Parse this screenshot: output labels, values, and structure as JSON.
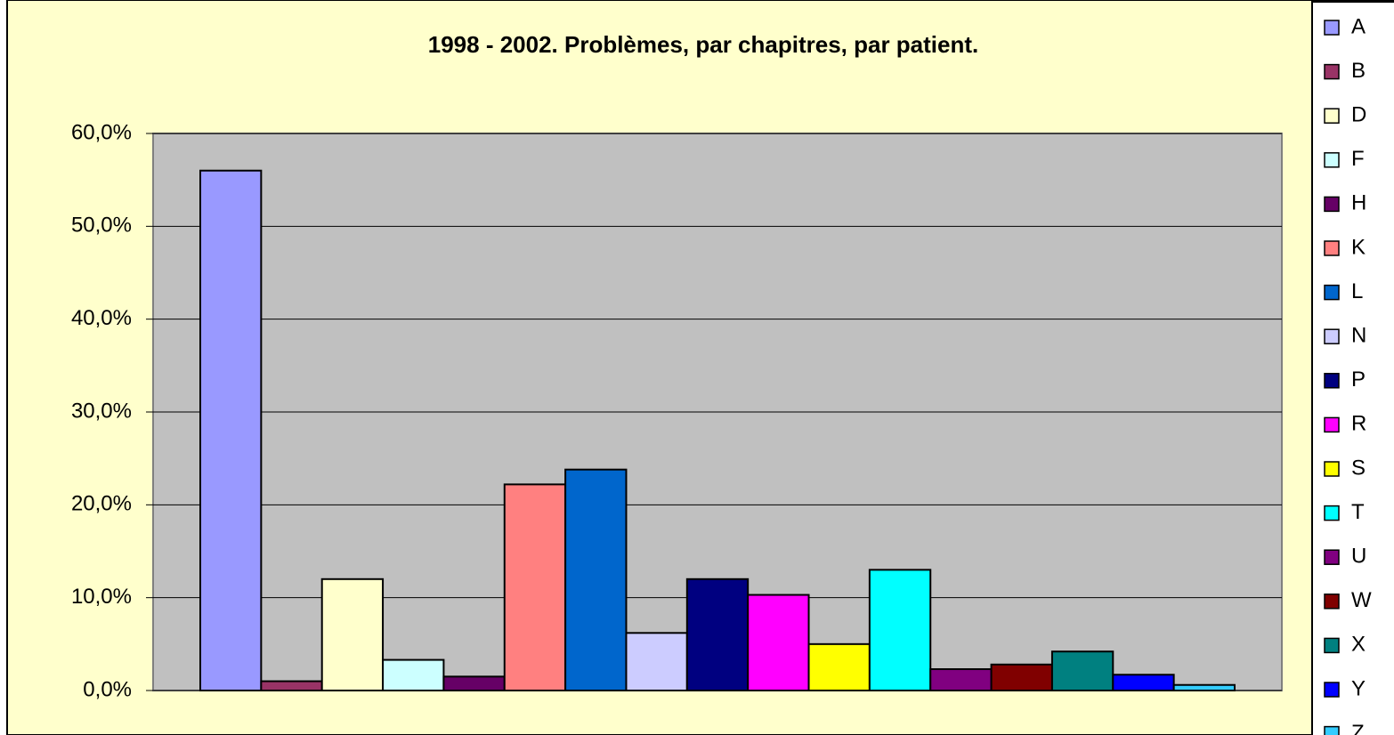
{
  "chart_data": {
    "type": "bar",
    "title": "1998 - 2002. Problèmes, par chapitres, par patient.",
    "categories": [
      null
    ],
    "series": [
      {
        "name": "A",
        "color": "#9999FF",
        "values": [
          56.0
        ]
      },
      {
        "name": "B",
        "color": "#993366",
        "values": [
          1.0
        ]
      },
      {
        "name": "D",
        "color": "#FFFFCC",
        "values": [
          12.0
        ]
      },
      {
        "name": "F",
        "color": "#CCFFFF",
        "values": [
          3.3
        ]
      },
      {
        "name": "H",
        "color": "#660066",
        "values": [
          1.5
        ]
      },
      {
        "name": "K",
        "color": "#FF8080",
        "values": [
          22.2
        ]
      },
      {
        "name": "L",
        "color": "#0066CC",
        "values": [
          23.8
        ]
      },
      {
        "name": "N",
        "color": "#CCCCFF",
        "values": [
          6.2
        ]
      },
      {
        "name": "P",
        "color": "#000080",
        "values": [
          12.0
        ]
      },
      {
        "name": "R",
        "color": "#FF00FF",
        "values": [
          10.3
        ]
      },
      {
        "name": "S",
        "color": "#FFFF00",
        "values": [
          5.0
        ]
      },
      {
        "name": "T",
        "color": "#00FFFF",
        "values": [
          13.0
        ]
      },
      {
        "name": "U",
        "color": "#800080",
        "values": [
          2.3
        ]
      },
      {
        "name": "W",
        "color": "#800000",
        "values": [
          2.8
        ]
      },
      {
        "name": "X",
        "color": "#008080",
        "values": [
          4.2
        ]
      },
      {
        "name": "Y",
        "color": "#0000FF",
        "values": [
          1.7
        ]
      },
      {
        "name": "Z",
        "color": "#33CCFF",
        "values": [
          0.6
        ]
      }
    ],
    "ylim": [
      0,
      60
    ],
    "yticks": [
      {
        "value": 0,
        "label": "0,0%"
      },
      {
        "value": 10,
        "label": "10,0%"
      },
      {
        "value": 20,
        "label": "20,0%"
      },
      {
        "value": 30,
        "label": "30,0%"
      },
      {
        "value": 40,
        "label": "40,0%"
      },
      {
        "value": 50,
        "label": "50,0%"
      },
      {
        "value": 60,
        "label": "60,0%"
      }
    ],
    "grid": true,
    "legend": "right"
  }
}
